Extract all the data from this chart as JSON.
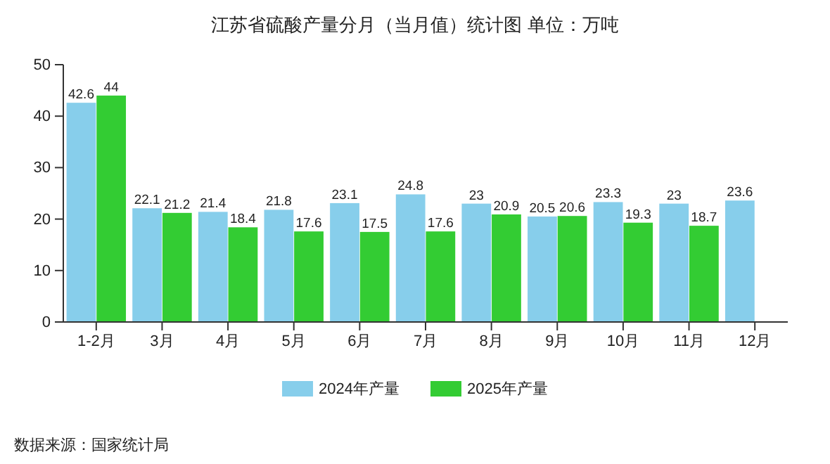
{
  "chart_data": {
    "type": "bar",
    "title": "江苏省硫酸产量分月（当月值）统计图 单位：万吨",
    "categories": [
      "1-2月",
      "3月",
      "4月",
      "5月",
      "6月",
      "7月",
      "8月",
      "9月",
      "10月",
      "11月",
      "12月"
    ],
    "series": [
      {
        "name": "2024年产量",
        "color": "#87ceeb",
        "values": [
          42.6,
          22.1,
          21.4,
          21.8,
          23.1,
          24.8,
          23,
          20.5,
          23.3,
          23,
          23.6
        ]
      },
      {
        "name": "2025年产量",
        "color": "#33cc33",
        "values": [
          44,
          21.2,
          18.4,
          17.6,
          17.5,
          17.6,
          20.9,
          20.6,
          19.3,
          18.7,
          null
        ]
      }
    ],
    "ylim": [
      0,
      50
    ],
    "yticks": [
      0,
      10,
      20,
      30,
      40,
      50
    ],
    "grid": false,
    "legend": "bottom",
    "data_labels": true,
    "annotations": [
      "数据来源：国家统计局"
    ]
  }
}
